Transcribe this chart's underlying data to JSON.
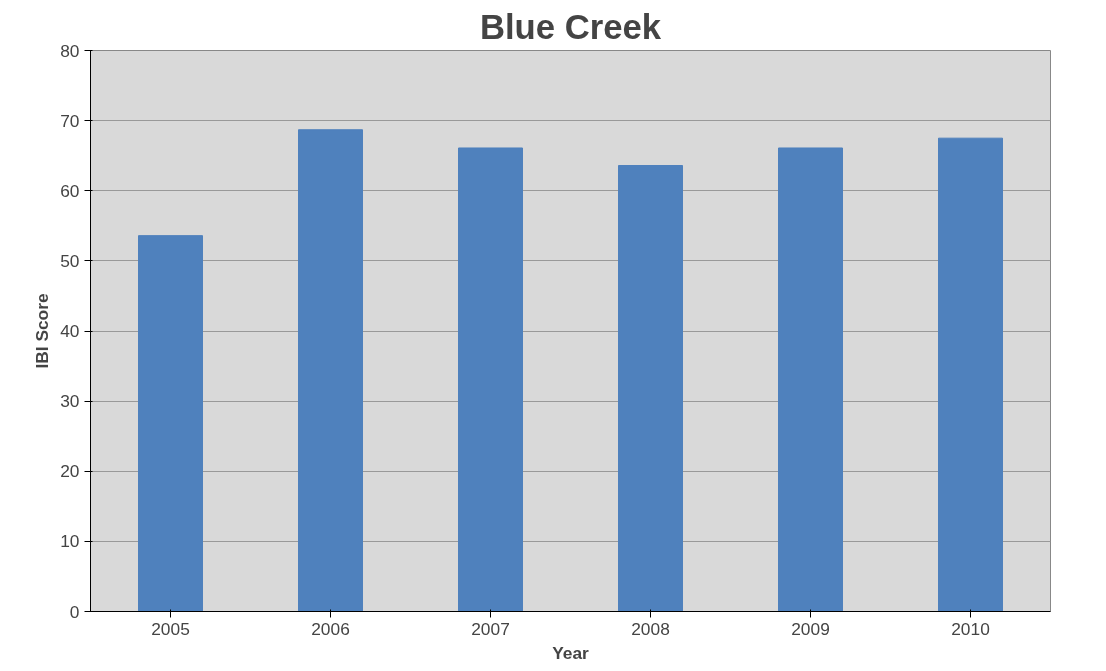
{
  "chart_data": {
    "type": "bar",
    "title": "Blue Creek",
    "xlabel": "Year",
    "ylabel": "IBI Score",
    "categories": [
      "2005",
      "2006",
      "2007",
      "2008",
      "2009",
      "2010"
    ],
    "values": [
      53.6,
      68.7,
      66.1,
      63.6,
      66.1,
      67.5
    ],
    "color": "#4f81bd",
    "ylim": [
      0,
      80
    ],
    "yticks": [
      0,
      10,
      20,
      30,
      40,
      50,
      60,
      70,
      80
    ],
    "grid": "y"
  }
}
